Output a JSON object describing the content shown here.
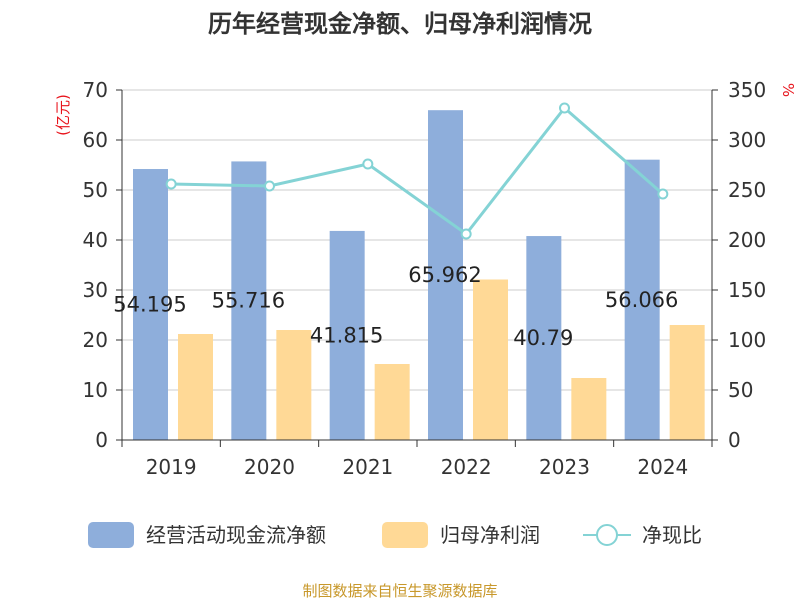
{
  "colors": {
    "bar1": "#8eaedb",
    "bar2": "#ffd996",
    "line": "#84d3d5",
    "unit": "#e8141c",
    "source": "#c8982b",
    "axis": "#333333",
    "grid": "#cccccc",
    "text": "#333333"
  },
  "chart_data": {
    "type": "bar",
    "title": "历年经营现金净额、归母净利润情况",
    "y_left_unit": "(亿元)",
    "y_right_unit": "%",
    "categories": [
      "2019",
      "2020",
      "2021",
      "2022",
      "2023",
      "2024"
    ],
    "ylim_left": [
      0,
      70
    ],
    "ylim_right": [
      0,
      350
    ],
    "yticks_left": [
      "0",
      "10",
      "20",
      "30",
      "40",
      "50",
      "60",
      "70"
    ],
    "yticks_right": [
      "0",
      "50",
      "100",
      "150",
      "200",
      "250",
      "300",
      "350"
    ],
    "grid": true,
    "legend_position": "bottom",
    "series": [
      {
        "name": "经营活动现金流净额",
        "type": "bar",
        "axis": "left",
        "values": [
          54.195,
          55.716,
          41.815,
          65.962,
          40.79,
          56.066
        ],
        "labels": [
          "54.195",
          "55.716",
          "41.815",
          "65.962",
          "40.79",
          "56.066"
        ]
      },
      {
        "name": "归母净利润",
        "type": "bar",
        "axis": "left",
        "values": [
          21.2,
          22.0,
          15.2,
          32.1,
          12.4,
          23.0
        ]
      },
      {
        "name": "净现比",
        "type": "line",
        "axis": "right",
        "values": [
          256,
          254,
          276,
          206,
          332,
          246
        ]
      }
    ],
    "source": "制图数据来自恒生聚源数据库"
  }
}
